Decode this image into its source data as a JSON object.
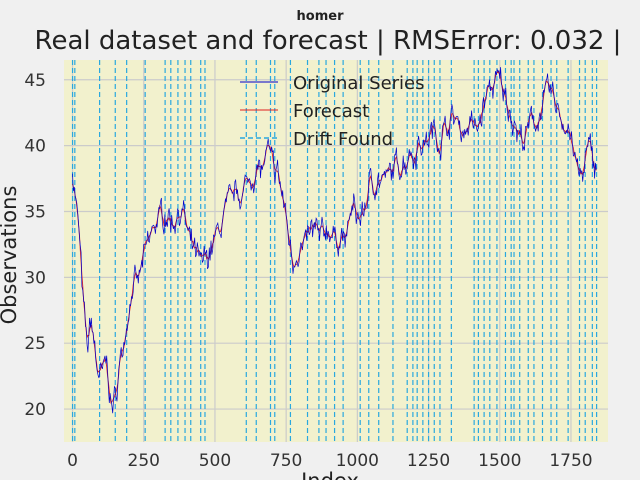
{
  "figure": {
    "suptitle": "homer",
    "title": "Real dataset and forecast | RMSError: 0.032 |"
  },
  "chart_data": {
    "type": "line",
    "xlabel": "Index",
    "ylabel": "Observations",
    "xlim": [
      -30,
      1880
    ],
    "ylim": [
      17.5,
      46.5
    ],
    "xticks": [
      0,
      250,
      500,
      750,
      1000,
      1250,
      1500,
      1750
    ],
    "yticks": [
      20,
      25,
      30,
      35,
      40,
      45
    ],
    "grid": true,
    "legend_position": "top-center",
    "colors": {
      "background": "#f0f0f0",
      "plot_area": "#f2f1cd",
      "grid": "#cbcbcb",
      "original": "#0000cc",
      "forecast": "#e02020",
      "drift": "#29a8df"
    },
    "series": [
      {
        "name": "Original Series",
        "style": "solid",
        "anchors": [
          [
            0,
            38.3
          ],
          [
            8,
            36.5
          ],
          [
            15,
            35.1
          ],
          [
            25,
            32.8
          ],
          [
            35,
            28.4
          ],
          [
            45,
            26.0
          ],
          [
            55,
            24.5
          ],
          [
            65,
            27.2
          ],
          [
            75,
            25.0
          ],
          [
            85,
            23.3
          ],
          [
            95,
            22.5
          ],
          [
            105,
            22.4
          ],
          [
            115,
            23.6
          ],
          [
            125,
            22.7
          ],
          [
            140,
            19.7
          ],
          [
            150,
            20.9
          ],
          [
            165,
            23.3
          ],
          [
            180,
            25.1
          ],
          [
            195,
            27.4
          ],
          [
            210,
            29.3
          ],
          [
            230,
            29.5
          ],
          [
            250,
            31.4
          ],
          [
            270,
            32.8
          ],
          [
            290,
            34.1
          ],
          [
            310,
            34.6
          ],
          [
            330,
            35.0
          ],
          [
            350,
            34.1
          ],
          [
            370,
            35.1
          ],
          [
            390,
            34.9
          ],
          [
            410,
            32.5
          ],
          [
            430,
            31.8
          ],
          [
            450,
            30.8
          ],
          [
            470,
            31.5
          ],
          [
            490,
            32.4
          ],
          [
            510,
            33.2
          ],
          [
            530,
            34.6
          ],
          [
            550,
            35.4
          ],
          [
            575,
            36.6
          ],
          [
            600,
            36.4
          ],
          [
            620,
            37.4
          ],
          [
            645,
            38.2
          ],
          [
            665,
            38.0
          ],
          [
            680,
            39.2
          ],
          [
            690,
            39.3
          ],
          [
            705,
            38.1
          ],
          [
            720,
            38.0
          ],
          [
            740,
            35.8
          ],
          [
            760,
            33.0
          ],
          [
            775,
            31.2
          ],
          [
            790,
            32.3
          ],
          [
            810,
            32.0
          ],
          [
            830,
            33.1
          ],
          [
            850,
            33.6
          ],
          [
            870,
            32.8
          ],
          [
            885,
            33.5
          ],
          [
            900,
            33.9
          ],
          [
            920,
            32.8
          ],
          [
            945,
            33.3
          ],
          [
            960,
            32.5
          ],
          [
            975,
            34.9
          ],
          [
            990,
            35.0
          ],
          [
            1005,
            34.5
          ],
          [
            1020,
            34.8
          ],
          [
            1045,
            37.0
          ],
          [
            1070,
            37.5
          ],
          [
            1095,
            37.2
          ],
          [
            1120,
            37.9
          ],
          [
            1145,
            38.7
          ],
          [
            1170,
            38.9
          ],
          [
            1185,
            39.8
          ],
          [
            1200,
            39.3
          ],
          [
            1215,
            40.4
          ],
          [
            1240,
            40.1
          ],
          [
            1260,
            41.0
          ],
          [
            1275,
            41.0
          ],
          [
            1290,
            40.5
          ],
          [
            1305,
            41.1
          ],
          [
            1320,
            41.8
          ],
          [
            1345,
            42.1
          ],
          [
            1370,
            41.1
          ],
          [
            1395,
            41.7
          ],
          [
            1420,
            41.1
          ],
          [
            1445,
            43.1
          ],
          [
            1465,
            44.4
          ],
          [
            1480,
            44.6
          ],
          [
            1490,
            44.8
          ],
          [
            1505,
            44.8
          ],
          [
            1520,
            43.6
          ],
          [
            1540,
            42.6
          ],
          [
            1555,
            41.5
          ],
          [
            1570,
            40.6
          ],
          [
            1585,
            40.5
          ],
          [
            1600,
            40.9
          ],
          [
            1615,
            42.2
          ],
          [
            1630,
            41.9
          ],
          [
            1650,
            42.9
          ],
          [
            1665,
            44.0
          ],
          [
            1680,
            43.8
          ],
          [
            1695,
            43.4
          ],
          [
            1710,
            42.5
          ],
          [
            1725,
            41.7
          ],
          [
            1740,
            41.5
          ],
          [
            1755,
            40.2
          ],
          [
            1770,
            38.1
          ],
          [
            1790,
            37.4
          ],
          [
            1805,
            39.5
          ],
          [
            1820,
            39.5
          ],
          [
            1835,
            38.6
          ]
        ]
      },
      {
        "name": "Forecast",
        "style": "solid"
      },
      {
        "name": "Drift Found",
        "style": "dashed",
        "x": [
          0,
          8,
          95,
          150,
          190,
          255,
          325,
          345,
          370,
          395,
          415,
          450,
          465,
          610,
          645,
          695,
          710,
          765,
          825,
          865,
          890,
          920,
          950,
          1010,
          1040,
          1075,
          1125,
          1175,
          1195,
          1210,
          1230,
          1250,
          1270,
          1290,
          1330,
          1410,
          1425,
          1445,
          1465,
          1490,
          1520,
          1540,
          1550,
          1570,
          1600,
          1620,
          1650,
          1680,
          1700,
          1740,
          1780,
          1800,
          1825,
          1840
        ]
      }
    ]
  }
}
